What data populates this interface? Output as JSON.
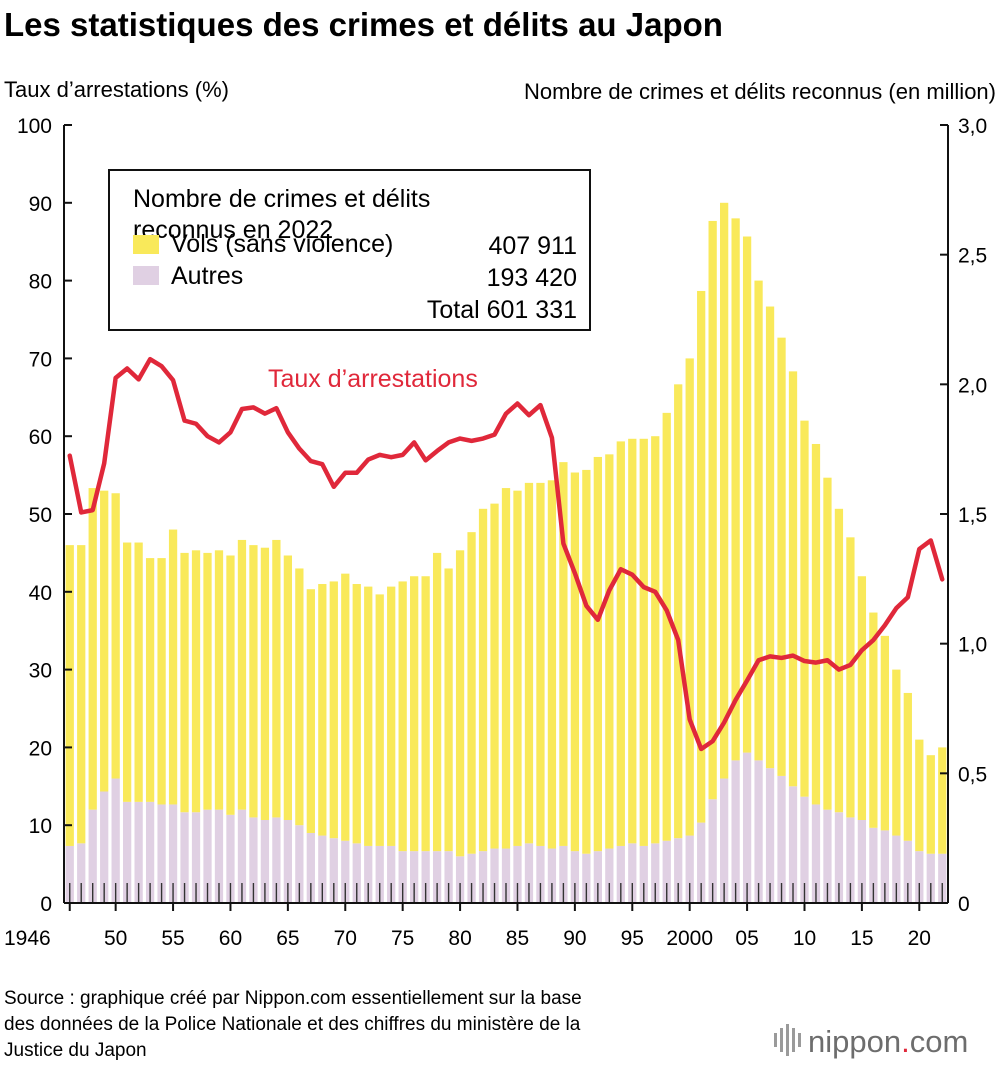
{
  "chart_data": {
    "type": "bar",
    "title": "Les statistiques des crimes et délits au Japon",
    "left_axis_title": "Taux d’arrestations (%)",
    "right_axis_title": "Nombre de crimes et délits reconnus (en million)",
    "left_ylim": [
      0,
      100
    ],
    "left_ticks": [
      "0",
      "10",
      "20",
      "30",
      "40",
      "50",
      "60",
      "70",
      "80",
      "90",
      "100"
    ],
    "right_ylim": [
      0,
      3.0
    ],
    "right_ticks": [
      "0",
      "0,5",
      "1,0",
      "1,5",
      "2,0",
      "2,5",
      "3,0"
    ],
    "x_tick_labels": [
      {
        "year": 1946,
        "label": "1946"
      },
      {
        "year": 1950,
        "label": "50"
      },
      {
        "year": 1955,
        "label": "55"
      },
      {
        "year": 1960,
        "label": "60"
      },
      {
        "year": 1965,
        "label": "65"
      },
      {
        "year": 1970,
        "label": "70"
      },
      {
        "year": 1975,
        "label": "75"
      },
      {
        "year": 1980,
        "label": "80"
      },
      {
        "year": 1985,
        "label": "85"
      },
      {
        "year": 1990,
        "label": "90"
      },
      {
        "year": 1995,
        "label": "95"
      },
      {
        "year": 2000,
        "label": "2000"
      },
      {
        "year": 2005,
        "label": "05"
      },
      {
        "year": 2010,
        "label": "10"
      },
      {
        "year": 2015,
        "label": "15"
      },
      {
        "year": 2020,
        "label": "20"
      }
    ],
    "years": [
      1946,
      1947,
      1948,
      1949,
      1950,
      1951,
      1952,
      1953,
      1954,
      1955,
      1956,
      1957,
      1958,
      1959,
      1960,
      1961,
      1962,
      1963,
      1964,
      1965,
      1966,
      1967,
      1968,
      1969,
      1970,
      1971,
      1972,
      1973,
      1974,
      1975,
      1976,
      1977,
      1978,
      1979,
      1980,
      1981,
      1982,
      1983,
      1984,
      1985,
      1986,
      1987,
      1988,
      1989,
      1990,
      1991,
      1992,
      1993,
      1994,
      1995,
      1996,
      1997,
      1998,
      1999,
      2000,
      2001,
      2002,
      2003,
      2004,
      2005,
      2006,
      2007,
      2008,
      2009,
      2010,
      2011,
      2012,
      2013,
      2014,
      2015,
      2016,
      2017,
      2018,
      2019,
      2020,
      2021,
      2022
    ],
    "series": [
      {
        "name": "Vols (sans violence)",
        "color": "#f9e95a",
        "values": [
          1.16,
          1.15,
          1.24,
          1.16,
          1.1,
          1.0,
          1.0,
          0.94,
          0.95,
          1.06,
          1.0,
          1.01,
          0.99,
          1.0,
          1.0,
          1.04,
          1.05,
          1.05,
          1.07,
          1.02,
          0.99,
          0.94,
          0.97,
          0.99,
          1.03,
          1.0,
          1.0,
          0.97,
          1.0,
          1.04,
          1.06,
          1.06,
          1.15,
          1.09,
          1.18,
          1.24,
          1.32,
          1.33,
          1.39,
          1.37,
          1.39,
          1.4,
          1.42,
          1.48,
          1.46,
          1.48,
          1.52,
          1.52,
          1.56,
          1.56,
          1.57,
          1.57,
          1.65,
          1.75,
          1.84,
          2.05,
          2.23,
          2.22,
          2.09,
          1.99,
          1.85,
          1.78,
          1.69,
          1.6,
          1.45,
          1.39,
          1.28,
          1.17,
          1.08,
          0.94,
          0.83,
          0.75,
          0.64,
          0.57,
          0.43,
          0.38,
          0.41
        ]
      },
      {
        "name": "Autres",
        "color": "#e0d0e3",
        "values": [
          0.22,
          0.23,
          0.36,
          0.43,
          0.48,
          0.39,
          0.39,
          0.39,
          0.38,
          0.38,
          0.35,
          0.35,
          0.36,
          0.36,
          0.34,
          0.36,
          0.33,
          0.32,
          0.33,
          0.32,
          0.3,
          0.27,
          0.26,
          0.25,
          0.24,
          0.23,
          0.22,
          0.22,
          0.22,
          0.2,
          0.2,
          0.2,
          0.2,
          0.2,
          0.18,
          0.19,
          0.2,
          0.21,
          0.21,
          0.22,
          0.23,
          0.22,
          0.21,
          0.22,
          0.2,
          0.19,
          0.2,
          0.21,
          0.22,
          0.23,
          0.22,
          0.23,
          0.24,
          0.25,
          0.26,
          0.31,
          0.4,
          0.48,
          0.55,
          0.58,
          0.55,
          0.52,
          0.49,
          0.45,
          0.41,
          0.38,
          0.36,
          0.35,
          0.33,
          0.32,
          0.29,
          0.28,
          0.26,
          0.24,
          0.2,
          0.19,
          0.19
        ]
      },
      {
        "name": "Taux d’arrestations",
        "type": "line",
        "axis": "left",
        "color": "#e0283a",
        "values": [
          57.5,
          50.2,
          50.5,
          56.5,
          67.5,
          68.7,
          67.3,
          69.9,
          69.0,
          67.2,
          62.0,
          61.6,
          60.0,
          59.2,
          60.5,
          63.5,
          63.7,
          62.9,
          63.6,
          60.5,
          58.4,
          56.8,
          56.4,
          53.5,
          55.3,
          55.3,
          57.0,
          57.6,
          57.3,
          57.6,
          59.2,
          56.9,
          58.1,
          59.2,
          59.7,
          59.4,
          59.7,
          60.2,
          62.9,
          64.2,
          62.7,
          64.0,
          59.8,
          46.2,
          42.4,
          38.2,
          36.4,
          40.2,
          42.9,
          42.2,
          40.6,
          40.0,
          37.6,
          33.8,
          23.6,
          19.8,
          20.8,
          23.2,
          26.1,
          28.6,
          31.2,
          31.7,
          31.5,
          31.8,
          31.1,
          30.9,
          31.2,
          30.0,
          30.6,
          32.5,
          33.8,
          35.7,
          37.9,
          39.3,
          45.5,
          46.6,
          41.6
        ]
      }
    ],
    "legend": {
      "heading_line1": "Nombre de crimes et délits",
      "heading_line2": "reconnus en 2022",
      "items": [
        {
          "label": "Vols (sans violence)",
          "value": "407 911",
          "color": "#f9e95a"
        },
        {
          "label": "Autres",
          "value": "193 420",
          "color": "#e0d0e3"
        }
      ],
      "total_label": "Total 601 331",
      "placement": "top-left"
    },
    "line_label": "Taux d’arrestations"
  },
  "source": {
    "line1": "Source : graphique créé par Nippon.com essentiellement sur la base",
    "line2": "des données de la Police Nationale et des chiffres du ministère de la",
    "line3": "Justice du Japon"
  },
  "brand": {
    "name": "nippon",
    "dot": ".",
    "suffix": "com",
    "dot_color": "#e0283a"
  }
}
